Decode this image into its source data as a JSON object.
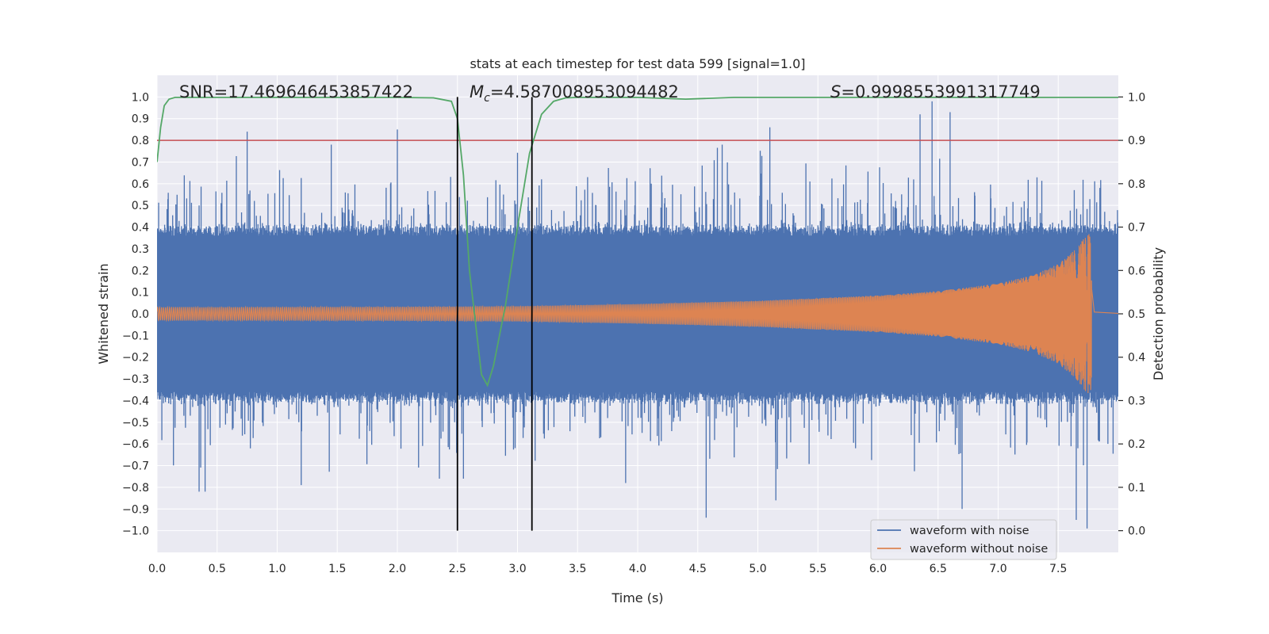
{
  "chart_data": {
    "type": "line",
    "title": "stats at each timestep for test data 599 [signal=1.0]",
    "xlabel": "Time (s)",
    "ylabel": "Whitened strain",
    "y2label": "Detection probability",
    "xlim": [
      0.0,
      8.0
    ],
    "ylim": [
      -1.1,
      1.1
    ],
    "y2lim": [
      -0.05,
      1.05
    ],
    "grid": true,
    "xticks": [
      "0.0",
      "0.5",
      "1.0",
      "1.5",
      "2.0",
      "2.5",
      "3.0",
      "3.5",
      "4.0",
      "4.5",
      "5.0",
      "5.5",
      "6.0",
      "6.5",
      "7.0",
      "7.5"
    ],
    "xtick_values": [
      0,
      0.5,
      1,
      1.5,
      2,
      2.5,
      3,
      3.5,
      4,
      4.5,
      5,
      5.5,
      6,
      6.5,
      7,
      7.5
    ],
    "yticks": [
      "1.0",
      "0.9",
      "0.8",
      "0.7",
      "0.6",
      "0.5",
      "0.4",
      "0.3",
      "0.2",
      "0.1",
      "0.0",
      "−0.1",
      "−0.2",
      "−0.3",
      "−0.4",
      "−0.5",
      "−0.6",
      "−0.7",
      "−0.8",
      "−0.9",
      "−1.0"
    ],
    "ytick_values": [
      1,
      0.9,
      0.8,
      0.7,
      0.6,
      0.5,
      0.4,
      0.3,
      0.2,
      0.1,
      0,
      -0.1,
      -0.2,
      -0.3,
      -0.4,
      -0.5,
      -0.6,
      -0.7,
      -0.8,
      -0.9,
      -1.0
    ],
    "y2ticks": [
      "1.0",
      "0.9",
      "0.8",
      "0.7",
      "0.6",
      "0.5",
      "0.4",
      "0.3",
      "0.2",
      "0.1",
      "0.0"
    ],
    "y2tick_values": [
      1,
      0.9,
      0.8,
      0.7,
      0.6,
      0.5,
      0.4,
      0.3,
      0.2,
      0.1,
      0
    ],
    "annotations": {
      "snr": "SNR=17.469646453857422",
      "mc_symbol": "M",
      "mc_sub": "c",
      "mc_value": "=4.587008953094482",
      "s_symbol": "S",
      "s_value": "=0.9998553991317749"
    },
    "series": [
      {
        "name": "waveform with noise",
        "color": "#4c72b0",
        "description": "noisy whitened strain, typical envelope ~±0.4 with spikes up to ~0.98 and down to ~-1.0",
        "envelope": 0.38,
        "spikes": [
          {
            "x": 0.75,
            "y": 0.84
          },
          {
            "x": 2.0,
            "y": 0.85
          },
          {
            "x": 6.45,
            "y": 0.98
          },
          {
            "x": 6.35,
            "y": 0.92
          },
          {
            "x": 6.6,
            "y": 0.93
          },
          {
            "x": 5.1,
            "y": 0.86
          },
          {
            "x": 0.35,
            "y": -0.82
          },
          {
            "x": 0.4,
            "y": -0.82
          },
          {
            "x": 4.57,
            "y": -0.94
          },
          {
            "x": 5.15,
            "y": -0.86
          },
          {
            "x": 6.7,
            "y": -0.9
          },
          {
            "x": 7.65,
            "y": -0.95
          },
          {
            "x": 7.74,
            "y": -0.99
          },
          {
            "x": 1.2,
            "y": -0.79
          },
          {
            "x": 3.9,
            "y": -0.78
          }
        ]
      },
      {
        "name": "waveform without noise",
        "color": "#dd8452",
        "description": "chirp: amplitude grows from ~0.03 to peak ~0.38 at t≈7.77 s then ringdown",
        "amplitude_points": [
          [
            0.0,
            0.03
          ],
          [
            2.0,
            0.032
          ],
          [
            3.0,
            0.035
          ],
          [
            4.0,
            0.045
          ],
          [
            5.0,
            0.06
          ],
          [
            6.0,
            0.085
          ],
          [
            6.5,
            0.105
          ],
          [
            7.0,
            0.14
          ],
          [
            7.3,
            0.18
          ],
          [
            7.5,
            0.23
          ],
          [
            7.65,
            0.3
          ],
          [
            7.73,
            0.36
          ],
          [
            7.77,
            0.38
          ],
          [
            7.8,
            0.02
          ],
          [
            8.0,
            0.005
          ]
        ]
      },
      {
        "name": "detection probability",
        "axis": "right",
        "color": "#55a868",
        "x": [
          0.0,
          0.03,
          0.06,
          0.1,
          0.15,
          0.5,
          1.0,
          1.5,
          2.0,
          2.3,
          2.45,
          2.5,
          2.55,
          2.6,
          2.7,
          2.75,
          2.8,
          2.9,
          3.0,
          3.1,
          3.2,
          3.3,
          3.4,
          3.5,
          4.0,
          4.4,
          4.5,
          4.8,
          5.0,
          5.5,
          6.0,
          6.5,
          7.0,
          7.5,
          8.0
        ],
        "values": [
          0.85,
          0.93,
          0.98,
          0.995,
          0.999,
          0.999,
          0.999,
          0.999,
          0.999,
          0.998,
          0.99,
          0.95,
          0.82,
          0.6,
          0.36,
          0.335,
          0.38,
          0.52,
          0.7,
          0.87,
          0.96,
          0.99,
          0.998,
          0.999,
          0.999,
          0.995,
          0.996,
          0.999,
          0.999,
          0.999,
          0.999,
          0.999,
          0.999,
          0.999,
          0.999
        ]
      }
    ],
    "threshold": {
      "y2": 0.9,
      "color": "#c44e52"
    },
    "vlines": [
      2.5,
      3.12
    ],
    "legend": {
      "position": "bottom-right",
      "entries": [
        {
          "label": "waveform with noise",
          "color": "#4c72b0"
        },
        {
          "label": "waveform without noise",
          "color": "#dd8452"
        }
      ]
    }
  }
}
